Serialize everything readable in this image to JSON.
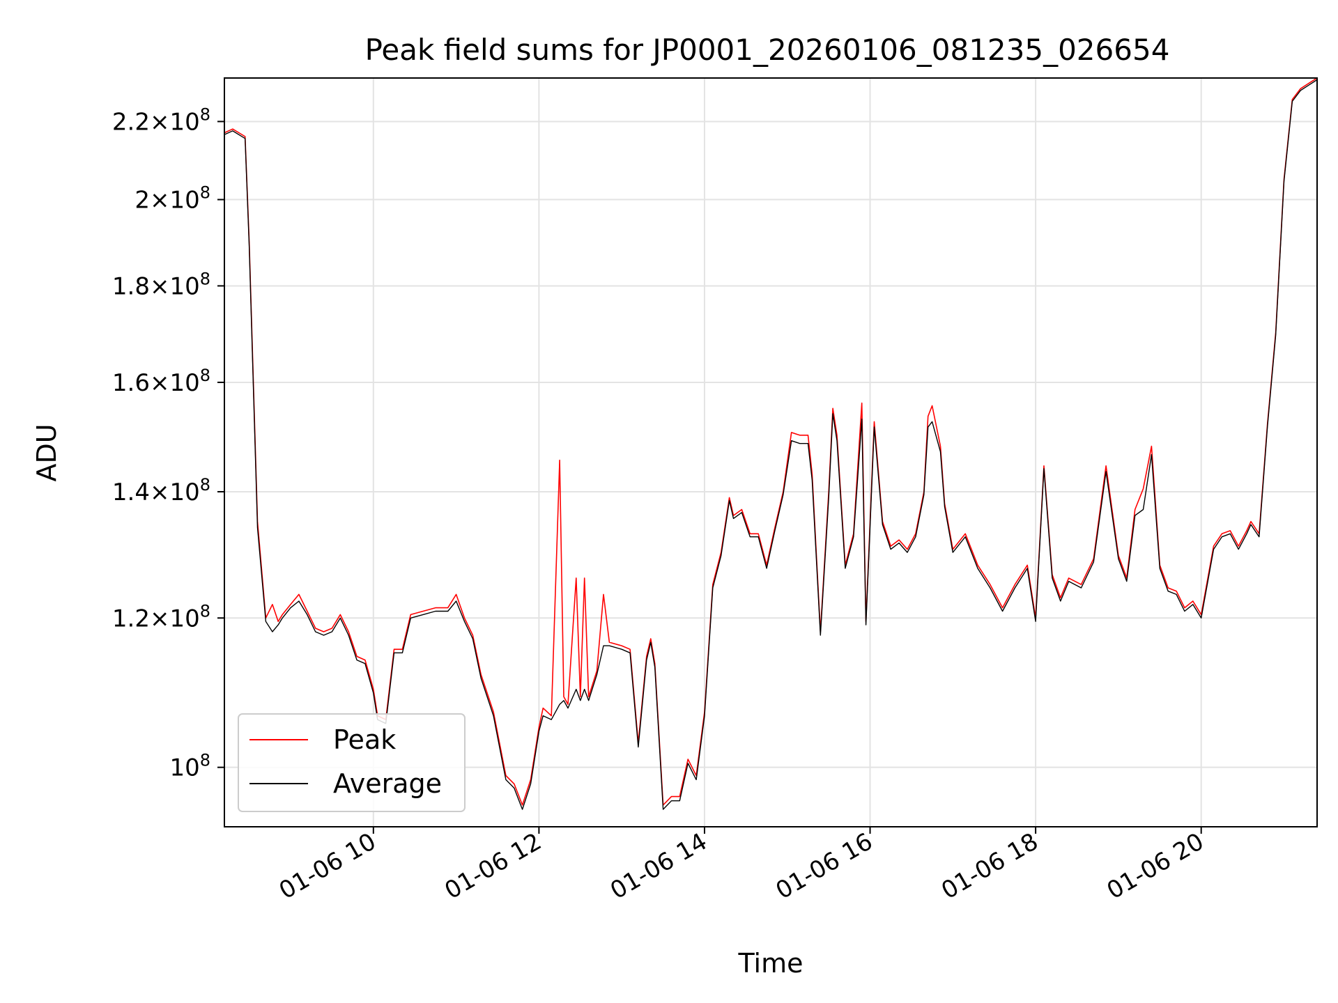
{
  "chart_data": {
    "type": "line",
    "title": "Peak field sums for JP0001_20260106_081235_026654",
    "xlabel": "Time",
    "ylabel": "ADU",
    "yscale": "log",
    "grid": true,
    "legend_position": "lower-left",
    "x_unit": "hours",
    "xlim": [
      8.2,
      21.4
    ],
    "ylim": [
      93000000,
      232000000
    ],
    "x_ticks": [
      {
        "value": 10,
        "label": "01-06 10"
      },
      {
        "value": 12,
        "label": "01-06 12"
      },
      {
        "value": 14,
        "label": "01-06 14"
      },
      {
        "value": 16,
        "label": "01-06 16"
      },
      {
        "value": 18,
        "label": "01-06 18"
      },
      {
        "value": 20,
        "label": "01-06 20"
      }
    ],
    "y_ticks": [
      {
        "value": 100000000,
        "mantissa": "",
        "exp": "8"
      },
      {
        "value": 120000000,
        "mantissa": "1.2",
        "exp": "8"
      },
      {
        "value": 140000000,
        "mantissa": "1.4",
        "exp": "8"
      },
      {
        "value": 160000000,
        "mantissa": "1.6",
        "exp": "8"
      },
      {
        "value": 180000000,
        "mantissa": "1.8",
        "exp": "8"
      },
      {
        "value": 200000000,
        "mantissa": "2",
        "exp": "8"
      },
      {
        "value": 220000000,
        "mantissa": "2.2",
        "exp": "8"
      }
    ],
    "series": [
      {
        "name": "Peak",
        "color": "#ff0000",
        "x": [
          8.2,
          8.3,
          8.45,
          8.5,
          8.6,
          8.7,
          8.78,
          8.85,
          8.9,
          9.0,
          9.1,
          9.2,
          9.3,
          9.4,
          9.5,
          9.6,
          9.7,
          9.8,
          9.9,
          10.0,
          10.05,
          10.15,
          10.25,
          10.35,
          10.45,
          10.6,
          10.75,
          10.9,
          11.0,
          11.1,
          11.2,
          11.3,
          11.45,
          11.6,
          11.7,
          11.8,
          11.9,
          12.0,
          12.05,
          12.15,
          12.25,
          12.3,
          12.35,
          12.45,
          12.5,
          12.55,
          12.6,
          12.7,
          12.78,
          12.85,
          13.0,
          13.1,
          13.2,
          13.3,
          13.35,
          13.4,
          13.5,
          13.6,
          13.7,
          13.8,
          13.9,
          14.0,
          14.1,
          14.2,
          14.3,
          14.35,
          14.45,
          14.55,
          14.65,
          14.75,
          14.85,
          14.95,
          15.05,
          15.15,
          15.25,
          15.3,
          15.4,
          15.5,
          15.55,
          15.6,
          15.7,
          15.8,
          15.9,
          15.95,
          16.05,
          16.15,
          16.25,
          16.35,
          16.45,
          16.55,
          16.65,
          16.7,
          16.75,
          16.85,
          16.9,
          17.0,
          17.15,
          17.3,
          17.45,
          17.6,
          17.75,
          17.9,
          18.0,
          18.1,
          18.2,
          18.3,
          18.4,
          18.55,
          18.7,
          18.85,
          19.0,
          19.1,
          19.2,
          19.3,
          19.4,
          19.5,
          19.6,
          19.7,
          19.8,
          19.9,
          20.0,
          20.15,
          20.25,
          20.35,
          20.45,
          20.55,
          20.6,
          20.7,
          20.8,
          20.9,
          21.0,
          21.1,
          21.2,
          21.3,
          21.4
        ],
        "y": [
          217000000,
          218000000,
          216000000,
          190000000,
          135000000,
          120000000,
          122000000,
          119500000,
          120500000,
          122000000,
          123500000,
          121000000,
          118500000,
          118000000,
          118500000,
          120500000,
          118000000,
          114500000,
          114000000,
          110000000,
          106500000,
          106000000,
          115500000,
          115500000,
          120500000,
          121000000,
          121500000,
          121500000,
          123500000,
          120000000,
          117500000,
          112000000,
          107000000,
          99000000,
          98000000,
          95500000,
          98500000,
          105000000,
          107500000,
          106500000,
          145500000,
          109000000,
          108000000,
          126000000,
          109000000,
          126000000,
          109000000,
          112500000,
          123500000,
          116500000,
          116000000,
          115500000,
          103000000,
          114500000,
          117000000,
          113500000,
          95500000,
          96500000,
          96500000,
          101000000,
          99000000,
          107000000,
          125000000,
          130000000,
          139000000,
          136000000,
          137000000,
          133000000,
          133000000,
          128000000,
          134000000,
          140000000,
          150500000,
          150000000,
          150000000,
          143000000,
          118000000,
          140000000,
          155000000,
          150000000,
          128000000,
          133000000,
          156000000,
          119500000,
          152500000,
          135000000,
          131000000,
          132000000,
          130500000,
          133000000,
          140000000,
          153500000,
          155500000,
          148000000,
          138000000,
          130500000,
          133000000,
          128000000,
          125000000,
          121500000,
          125000000,
          128000000,
          120000000,
          144500000,
          126500000,
          123000000,
          126000000,
          125000000,
          129000000,
          144500000,
          129500000,
          126000000,
          137000000,
          140500000,
          148000000,
          128000000,
          124500000,
          124000000,
          121500000,
          122500000,
          120500000,
          131000000,
          133000000,
          133500000,
          131000000,
          133500000,
          135000000,
          133000000,
          152000000,
          170000000,
          205000000,
          226000000,
          229000000,
          230500000,
          232000000
        ]
      },
      {
        "name": "Average",
        "color": "#000000",
        "x": [
          8.2,
          8.3,
          8.45,
          8.5,
          8.6,
          8.7,
          8.78,
          8.85,
          8.9,
          9.0,
          9.1,
          9.2,
          9.3,
          9.4,
          9.5,
          9.6,
          9.7,
          9.8,
          9.9,
          10.0,
          10.05,
          10.15,
          10.25,
          10.35,
          10.45,
          10.6,
          10.75,
          10.9,
          11.0,
          11.1,
          11.2,
          11.3,
          11.45,
          11.6,
          11.7,
          11.8,
          11.9,
          12.0,
          12.05,
          12.15,
          12.25,
          12.3,
          12.35,
          12.45,
          12.5,
          12.55,
          12.6,
          12.7,
          12.78,
          12.85,
          13.0,
          13.1,
          13.2,
          13.3,
          13.35,
          13.4,
          13.5,
          13.6,
          13.7,
          13.8,
          13.9,
          14.0,
          14.1,
          14.2,
          14.3,
          14.35,
          14.45,
          14.55,
          14.65,
          14.75,
          14.85,
          14.95,
          15.05,
          15.15,
          15.25,
          15.3,
          15.4,
          15.5,
          15.55,
          15.6,
          15.7,
          15.8,
          15.9,
          15.95,
          16.05,
          16.15,
          16.25,
          16.35,
          16.45,
          16.55,
          16.65,
          16.7,
          16.75,
          16.85,
          16.9,
          17.0,
          17.15,
          17.3,
          17.45,
          17.6,
          17.75,
          17.9,
          18.0,
          18.1,
          18.2,
          18.3,
          18.4,
          18.55,
          18.7,
          18.85,
          19.0,
          19.1,
          19.2,
          19.3,
          19.4,
          19.5,
          19.6,
          19.7,
          19.8,
          19.9,
          20.0,
          20.15,
          20.25,
          20.35,
          20.45,
          20.55,
          20.6,
          20.7,
          20.8,
          20.9,
          21.0,
          21.1,
          21.2,
          21.3,
          21.4
        ],
        "y": [
          216500000,
          217500000,
          215500000,
          189000000,
          134000000,
          119500000,
          118000000,
          119000000,
          120000000,
          121500000,
          122500000,
          120500000,
          118000000,
          117500000,
          118000000,
          120000000,
          117500000,
          114000000,
          113500000,
          109500000,
          106000000,
          105500000,
          115000000,
          115000000,
          120000000,
          120500000,
          121000000,
          121000000,
          122500000,
          119500000,
          117000000,
          111500000,
          106500000,
          98500000,
          97500000,
          95000000,
          98000000,
          104500000,
          106500000,
          106000000,
          108000000,
          108500000,
          107500000,
          110000000,
          108500000,
          110000000,
          108500000,
          112000000,
          116000000,
          116000000,
          115500000,
          115000000,
          102500000,
          114000000,
          116500000,
          113000000,
          95000000,
          96000000,
          96000000,
          100500000,
          98500000,
          106500000,
          124500000,
          129500000,
          138500000,
          135500000,
          136500000,
          132500000,
          132500000,
          127500000,
          133500000,
          139500000,
          149000000,
          148500000,
          148500000,
          142000000,
          117500000,
          139000000,
          154000000,
          149000000,
          127500000,
          132500000,
          153000000,
          119000000,
          151500000,
          134500000,
          130500000,
          131500000,
          130000000,
          132500000,
          139500000,
          151500000,
          152500000,
          147000000,
          137500000,
          130000000,
          132500000,
          127500000,
          124500000,
          121000000,
          124500000,
          127500000,
          119500000,
          144000000,
          126000000,
          122500000,
          125500000,
          124500000,
          128500000,
          143500000,
          129000000,
          125500000,
          136000000,
          137000000,
          146500000,
          127500000,
          124000000,
          123500000,
          121000000,
          122000000,
          120000000,
          130500000,
          132500000,
          133000000,
          130500000,
          133000000,
          134500000,
          132500000,
          151500000,
          169500000,
          204500000,
          225500000,
          228500000,
          230000000,
          231500000
        ]
      }
    ]
  }
}
